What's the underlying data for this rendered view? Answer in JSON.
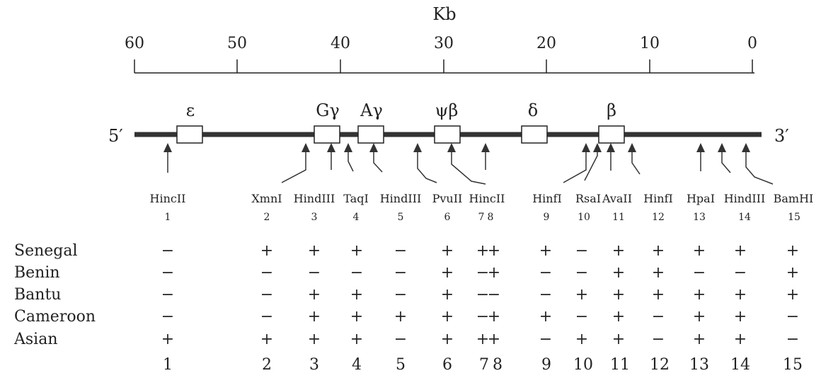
{
  "scale": {
    "unit": "Kb",
    "ticks": [
      "60",
      "50",
      "40",
      "30",
      "20",
      "10",
      "0"
    ]
  },
  "strand": {
    "five_prime": "5′",
    "three_prime": "3′"
  },
  "genes": [
    "ε",
    "Gγ",
    "Aγ",
    "ψβ",
    "δ",
    "β"
  ],
  "sites": [
    {
      "enzyme": "HincII",
      "number": "1"
    },
    {
      "enzyme": "XmnI",
      "number": "2"
    },
    {
      "enzyme": "HindIII",
      "number": "3"
    },
    {
      "enzyme": "TaqI",
      "number": "4"
    },
    {
      "enzyme": "HindIII",
      "number": "5"
    },
    {
      "enzyme": "PvuII",
      "number": "6"
    },
    {
      "enzyme": "HincII",
      "number": "7"
    },
    {
      "enzyme": "",
      "number": "8"
    },
    {
      "enzyme": "HinfI",
      "number": "9"
    },
    {
      "enzyme": "RsaI",
      "number": "10"
    },
    {
      "enzyme": "AvaII",
      "number": "11"
    },
    {
      "enzyme": "HinfI",
      "number": "12"
    },
    {
      "enzyme": "HpaI",
      "number": "13"
    },
    {
      "enzyme": "HindIII",
      "number": "14"
    },
    {
      "enzyme": "BamHI",
      "number": "15"
    }
  ],
  "haplotypes": [
    {
      "population": "Senegal",
      "marks": [
        "−",
        "+",
        "+",
        "+",
        "−",
        "+",
        "+",
        "+",
        "+",
        "−",
        "+",
        "+",
        "+",
        "+",
        "+"
      ]
    },
    {
      "population": "Benin",
      "marks": [
        "−",
        "−",
        "−",
        "−",
        "−",
        "+",
        "−",
        "+",
        "−",
        "−",
        "+",
        "+",
        "−",
        "−",
        "+"
      ]
    },
    {
      "population": "Bantu",
      "marks": [
        "−",
        "−",
        "+",
        "+",
        "−",
        "+",
        "−",
        "−",
        "−",
        "+",
        "+",
        "+",
        "+",
        "+",
        "+"
      ]
    },
    {
      "population": "Cameroon",
      "marks": [
        "−",
        "−",
        "+",
        "+",
        "+",
        "+",
        "−",
        "+",
        "+",
        "−",
        "+",
        "−",
        "+",
        "+",
        "−"
      ]
    },
    {
      "population": "Asian",
      "marks": [
        "+",
        "+",
        "+",
        "+",
        "−",
        "+",
        "+",
        "+",
        "−",
        "+",
        "+",
        "−",
        "+",
        "+",
        "−"
      ]
    }
  ],
  "bottom_numbers": [
    "1",
    "2",
    "3",
    "4",
    "5",
    "6",
    "7",
    "8",
    "9",
    "10",
    "11",
    "12",
    "13",
    "14",
    "15"
  ]
}
